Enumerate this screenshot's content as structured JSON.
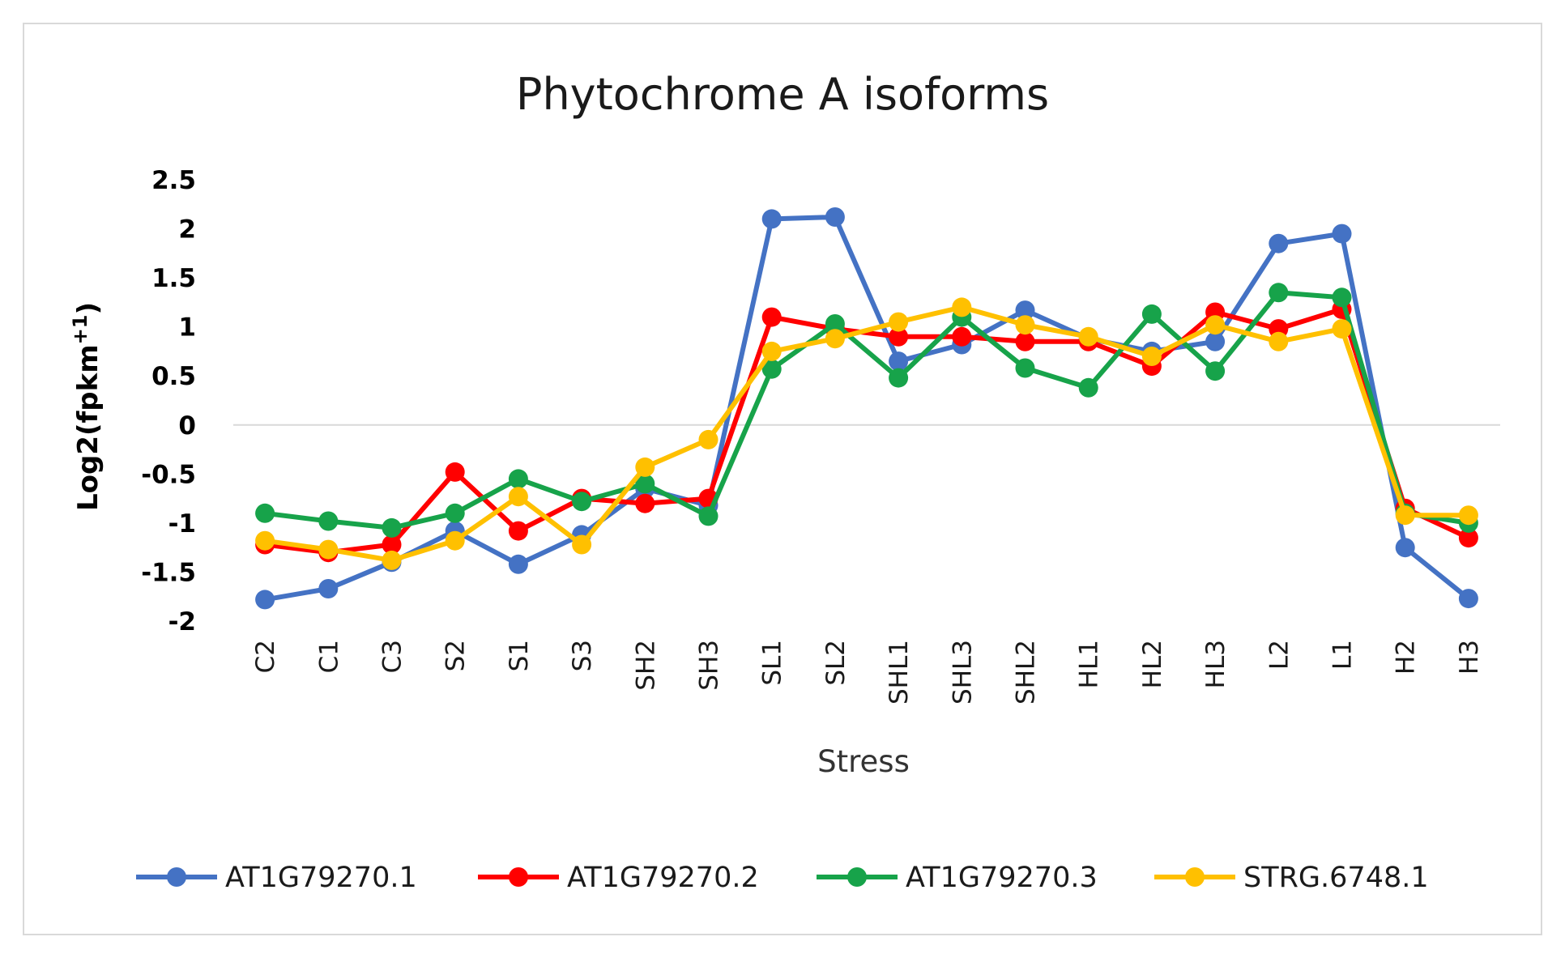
{
  "chart_data": {
    "type": "line",
    "title": "Phytochrome A isoforms",
    "xlabel": "Stress",
    "ylabel": "Log2(fpkm+1)",
    "ylabel_main": "Log2(fpkm",
    "ylabel_sup": "+1",
    "ylabel_end": ")",
    "ylim": [
      -2,
      2.5
    ],
    "yticks": [
      "2.5",
      "2",
      "1.5",
      "1",
      "0.5",
      "0",
      "-0.5",
      "-1",
      "-1.5",
      "-2"
    ],
    "ytick_values": [
      2.5,
      2,
      1.5,
      1,
      0.5,
      0,
      -0.5,
      -1,
      -1.5,
      -2
    ],
    "categories": [
      "C2",
      "C1",
      "C3",
      "S2",
      "S1",
      "S3",
      "SH2",
      "SH3",
      "SL1",
      "SL2",
      "SHL1",
      "SHL3",
      "SHL2",
      "HL1",
      "HL2",
      "HL3",
      "L2",
      "L1",
      "H2",
      "H3"
    ],
    "legend_position": "bottom",
    "grid": false,
    "series": [
      {
        "name": "AT1G79270.1",
        "color": "#4472C4",
        "values": [
          -1.78,
          -1.67,
          -1.4,
          -1.08,
          -1.42,
          -1.12,
          -0.65,
          -0.82,
          2.1,
          2.12,
          0.65,
          0.82,
          1.17,
          0.88,
          0.75,
          0.85,
          1.85,
          1.95,
          -1.25,
          -1.77
        ]
      },
      {
        "name": "AT1G79270.2",
        "color": "#FF0000",
        "values": [
          -1.22,
          -1.3,
          -1.22,
          -0.48,
          -1.08,
          -0.75,
          -0.8,
          -0.75,
          1.1,
          0.98,
          0.9,
          0.9,
          0.85,
          0.85,
          0.6,
          1.15,
          0.98,
          1.18,
          -0.85,
          -1.15
        ]
      },
      {
        "name": "AT1G79270.3",
        "color": "#17A34A",
        "values": [
          -0.9,
          -0.98,
          -1.05,
          -0.9,
          -0.55,
          -0.78,
          -0.6,
          -0.93,
          0.57,
          1.03,
          0.48,
          1.1,
          0.58,
          0.38,
          1.13,
          0.55,
          1.35,
          1.3,
          -0.9,
          -1.0
        ]
      },
      {
        "name": "STRG.6748.1",
        "color": "#FFC000",
        "values": [
          -1.18,
          -1.27,
          -1.38,
          -1.18,
          -0.73,
          -1.22,
          -0.43,
          -0.15,
          0.75,
          0.88,
          1.05,
          1.2,
          1.02,
          0.9,
          0.7,
          1.02,
          0.85,
          0.98,
          -0.92,
          -0.92
        ]
      }
    ]
  }
}
